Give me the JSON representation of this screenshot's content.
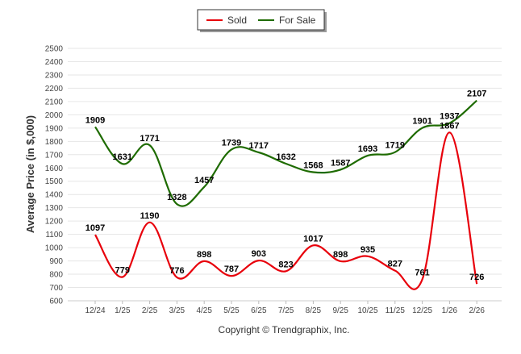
{
  "chart_data": {
    "type": "line",
    "title": "",
    "xlabel": "",
    "ylabel": "Average Price (in $,000)",
    "ylim": [
      600,
      2500
    ],
    "ytick_step": 100,
    "grid": true,
    "legend_position": "top-center",
    "categories": [
      "12/24",
      "1/25",
      "2/25",
      "3/25",
      "4/25",
      "5/25",
      "6/25",
      "7/25",
      "8/25",
      "9/25",
      "10/25",
      "11/25",
      "12/25",
      "1/26",
      "2/26"
    ],
    "series": [
      {
        "name": "Sold",
        "color": "#e8000b",
        "values": [
          1097,
          779,
          1190,
          776,
          898,
          787,
          903,
          823,
          1017,
          898,
          935,
          827,
          761,
          1867,
          726
        ]
      },
      {
        "name": "For Sale",
        "color": "#1e6b00",
        "values": [
          1909,
          1631,
          1771,
          1328,
          1457,
          1739,
          1717,
          1632,
          1568,
          1587,
          1693,
          1719,
          1901,
          1937,
          2107
        ]
      }
    ]
  },
  "footer": {
    "copyright": "Copyright © Trendgraphix, Inc."
  }
}
